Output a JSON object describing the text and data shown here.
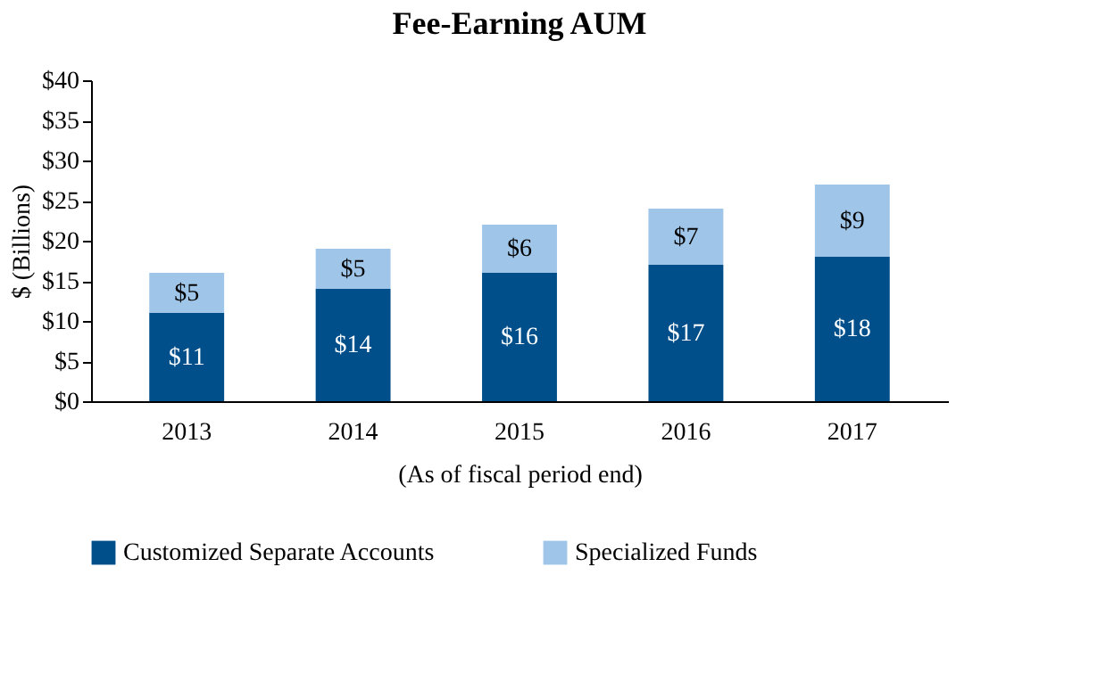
{
  "chart_data": {
    "type": "bar",
    "title": "Fee-Earning AUM",
    "xlabel": "(As of fiscal period end)",
    "ylabel": "$ (Billions)",
    "categories": [
      "2013",
      "2014",
      "2015",
      "2016",
      "2017"
    ],
    "stacked": true,
    "series": [
      {
        "name": "Customized Separate Accounts",
        "color": "#004f8a",
        "values": [
          11,
          14,
          16,
          17,
          18
        ],
        "value_labels": [
          "$11",
          "$14",
          "$16",
          "$17",
          "$18"
        ]
      },
      {
        "name": "Specialized Funds",
        "color": "#9fc5e8",
        "values": [
          5,
          5,
          6,
          7,
          9
        ],
        "value_labels": [
          "$5",
          "$5",
          "$6",
          "$7",
          "$9"
        ]
      }
    ],
    "ylim": [
      0,
      40
    ],
    "yticks": [
      {
        "value": 0,
        "label": "$0"
      },
      {
        "value": 5,
        "label": "$5"
      },
      {
        "value": 10,
        "label": "$10"
      },
      {
        "value": 15,
        "label": "$15"
      },
      {
        "value": 20,
        "label": "$20"
      },
      {
        "value": 25,
        "label": "$25"
      },
      {
        "value": 30,
        "label": "$30"
      },
      {
        "value": 35,
        "label": "$35"
      },
      {
        "value": 40,
        "label": "$40"
      }
    ],
    "grid": false,
    "legend": "bottom"
  }
}
